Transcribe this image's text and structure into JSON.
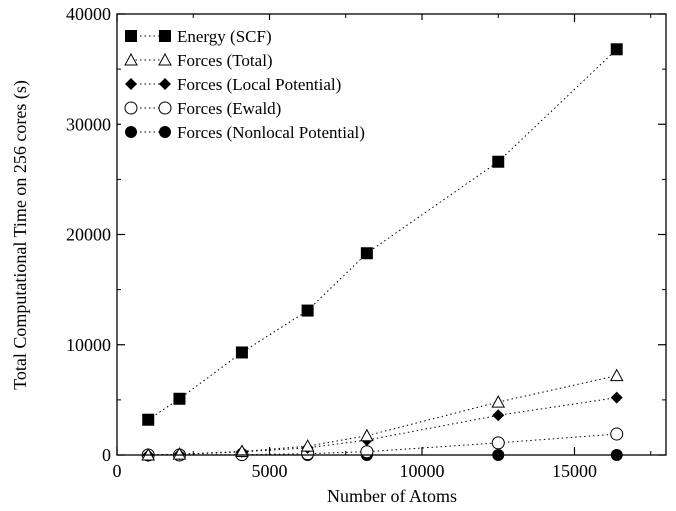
{
  "chart_data": {
    "type": "line",
    "xlabel": "Number of Atoms",
    "ylabel": "Total Computational Time on 256 cores (s)",
    "xlim": [
      0,
      18000
    ],
    "ylim": [
      0,
      40000
    ],
    "xticks": [
      0,
      5000,
      10000,
      15000
    ],
    "yticks": [
      0,
      10000,
      20000,
      30000,
      40000
    ],
    "xtick_labels": [
      "0",
      "5000",
      "10000",
      "15000"
    ],
    "ytick_labels": [
      "0",
      "10000",
      "20000",
      "30000",
      "40000"
    ],
    "grid": false,
    "legend_position": "top-left",
    "line_style": "dotted",
    "x": [
      1024,
      2048,
      4096,
      6250,
      8192,
      12500,
      16384
    ],
    "series": [
      {
        "name": "Energy (SCF)",
        "marker": "square-filled",
        "values": [
          3200,
          5100,
          9300,
          13100,
          18300,
          26600,
          36800
        ]
      },
      {
        "name": "Forces (Total)",
        "marker": "triangle-open",
        "values": [
          0,
          80,
          320,
          800,
          1750,
          4800,
          7200
        ]
      },
      {
        "name": "Forces (Local Potential)",
        "marker": "diamond-filled",
        "values": [
          0,
          60,
          280,
          650,
          1350,
          3600,
          5200
        ]
      },
      {
        "name": "Forces (Ewald)",
        "marker": "circle-open",
        "values": [
          0,
          0,
          30,
          120,
          300,
          1100,
          1900
        ]
      },
      {
        "name": "Forces (Nonlocal Potential)",
        "marker": "circle-filled",
        "values": [
          0,
          0,
          0,
          0,
          0,
          0,
          0
        ]
      }
    ]
  }
}
